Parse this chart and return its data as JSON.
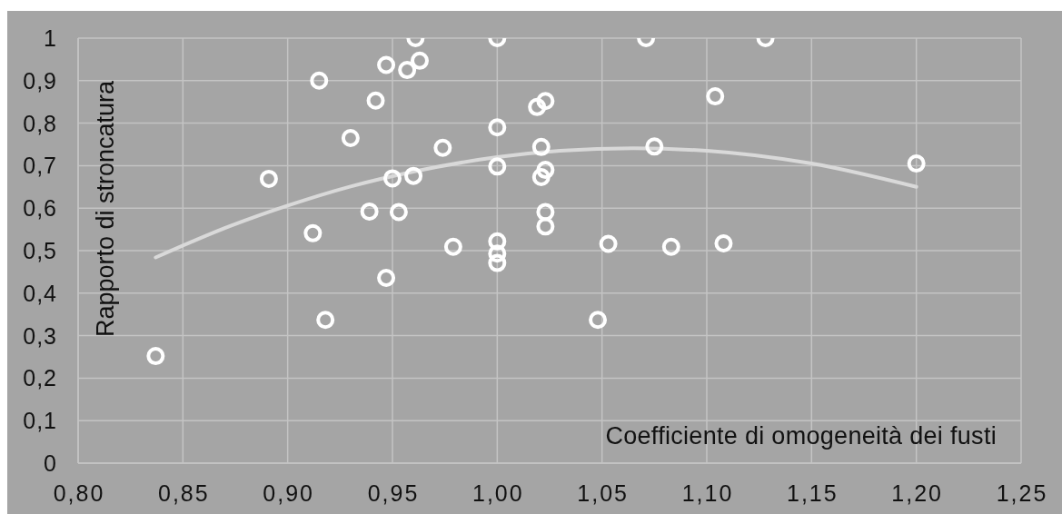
{
  "chart_data": {
    "type": "scatter",
    "xlabel": "Coefficiente di omogeneità dei fusti",
    "ylabel": "Rapporto di stroncatura",
    "xlim": [
      0.8,
      1.25
    ],
    "xticks": [
      {
        "value": 0.8,
        "label": "0,80"
      },
      {
        "value": 0.85,
        "label": "0,85"
      },
      {
        "value": 0.9,
        "label": "0,90"
      },
      {
        "value": 0.95,
        "label": "0,95"
      },
      {
        "value": 1.0,
        "label": "1,00"
      },
      {
        "value": 1.05,
        "label": "1,05"
      },
      {
        "value": 1.1,
        "label": "1,10"
      },
      {
        "value": 1.15,
        "label": "1,15"
      },
      {
        "value": 1.2,
        "label": "1,20"
      },
      {
        "value": 1.25,
        "label": "1,25"
      }
    ],
    "ylim": [
      0,
      1
    ],
    "yticks": [
      0,
      {
        "value": 0.1,
        "label": "0,1"
      },
      {
        "value": 0.2,
        "label": "0,2"
      },
      {
        "value": 0.3,
        "label": "0,3"
      },
      {
        "value": 0.4,
        "label": "0,4"
      },
      {
        "value": 0.5,
        "label": "0,5"
      },
      {
        "value": 0.6,
        "label": "0,6"
      },
      {
        "value": 0.7,
        "label": "0,7"
      },
      {
        "value": 0.8,
        "label": "0,8"
      },
      {
        "value": 0.9,
        "label": "0,9"
      },
      1
    ],
    "grid": true,
    "marker": "circle",
    "series": [
      {
        "color": "#ffffff",
        "x": [
          0.837,
          0.891,
          0.912,
          0.915,
          0.918,
          0.93,
          0.939,
          0.942,
          0.947,
          0.947,
          0.95,
          0.953,
          0.957,
          0.961,
          0.96,
          0.963,
          0.974,
          0.979,
          1.0,
          1.0,
          1.0,
          1.0,
          1.0,
          1.0,
          1.019,
          1.023,
          1.021,
          1.023,
          1.021,
          1.023,
          1.023,
          1.048,
          1.053,
          1.071,
          1.075,
          1.083,
          1.104,
          1.108,
          1.128,
          1.2
        ],
        "values": [
          0.252,
          0.669,
          0.541,
          0.9,
          0.337,
          0.765,
          0.592,
          0.853,
          0.937,
          0.436,
          0.67,
          0.591,
          0.925,
          1.0,
          0.676,
          0.947,
          0.742,
          0.509,
          1.0,
          0.79,
          0.698,
          0.522,
          0.493,
          0.471,
          0.838,
          0.852,
          0.744,
          0.69,
          0.673,
          0.591,
          0.557,
          0.337,
          0.516,
          1.0,
          0.745,
          0.509,
          0.863,
          0.517,
          1.0,
          0.705
        ]
      },
      {
        "type": "line",
        "color": "#d9d9d9",
        "marker": "none",
        "x": [
          0.837,
          0.87,
          0.9,
          0.93,
          0.96,
          1.0,
          1.03,
          1.065,
          1.1,
          1.15,
          1.2
        ],
        "values": [
          0.484,
          0.553,
          0.606,
          0.651,
          0.686,
          0.72,
          0.735,
          0.741,
          0.735,
          0.705,
          0.65
        ]
      }
    ]
  }
}
